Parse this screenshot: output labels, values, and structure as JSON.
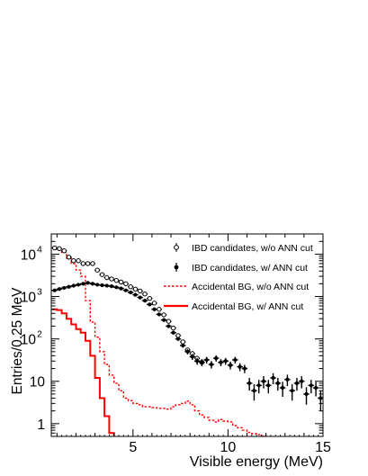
{
  "chart_data": {
    "type": "scatter",
    "title": "",
    "xlabel": "Visible energy (MeV)",
    "ylabel": "Entries/0.25 MeV",
    "xlim": [
      0.7,
      15
    ],
    "ylim": [
      0.5,
      30000
    ],
    "yscale": "log",
    "x_ticks": [
      5,
      10,
      15
    ],
    "y_ticks": [
      {
        "value": 1,
        "label": "1"
      },
      {
        "value": 10,
        "label": "10"
      },
      {
        "value": 100,
        "label": "10",
        "exp": "2"
      },
      {
        "value": 1000,
        "label": "10",
        "exp": "3"
      },
      {
        "value": 10000,
        "label": "10",
        "exp": "4"
      }
    ],
    "grid": false,
    "legend_position": "top-right",
    "series": [
      {
        "name": "IBD candidates, w/o ANN cut",
        "style": "open-marker-errorbars",
        "color": "#000000",
        "x": [
          0.875,
          1.125,
          1.375,
          1.625,
          1.875,
          2.125,
          2.375,
          2.625,
          2.875,
          3.125,
          3.375,
          3.625,
          3.875,
          4.125,
          4.375,
          4.625,
          4.875,
          5.125,
          5.375,
          5.625,
          5.875,
          6.125,
          6.375,
          6.625,
          6.875,
          7.125,
          7.375,
          7.625,
          7.875,
          8.125,
          8.375,
          8.625
        ],
        "y": [
          14000,
          13500,
          12000,
          8500,
          7000,
          7000,
          6000,
          6000,
          6000,
          4200,
          3300,
          2800,
          2600,
          2400,
          2200,
          2000,
          1700,
          1500,
          1350,
          1150,
          900,
          700,
          500,
          370,
          260,
          180,
          120,
          85,
          55,
          45,
          35,
          28
        ]
      },
      {
        "name": "IBD candidates, w/ ANN cut",
        "style": "filled-marker-errorbars",
        "color": "#000000",
        "x": [
          0.875,
          1.125,
          1.375,
          1.625,
          1.875,
          2.125,
          2.375,
          2.625,
          2.875,
          3.125,
          3.375,
          3.625,
          3.875,
          4.125,
          4.375,
          4.625,
          4.875,
          5.125,
          5.375,
          5.625,
          5.875,
          6.125,
          6.375,
          6.625,
          6.875,
          7.125,
          7.375,
          7.625,
          7.875,
          8.125,
          8.375,
          8.625,
          8.875,
          9.125,
          9.375,
          9.625,
          9.875,
          10.125,
          10.375,
          10.625,
          10.875,
          11.125,
          11.375,
          11.625,
          11.875,
          12.125,
          12.375,
          12.625,
          12.875,
          13.125,
          13.375,
          13.625,
          13.875,
          14.125,
          14.375,
          14.625,
          14.875
        ],
        "y": [
          1400,
          1500,
          1600,
          1700,
          1800,
          1900,
          2000,
          2100,
          2000,
          1900,
          1850,
          1800,
          1750,
          1650,
          1550,
          1400,
          1250,
          1100,
          950,
          800,
          650,
          500,
          380,
          280,
          200,
          140,
          100,
          70,
          50,
          38,
          30,
          28,
          32,
          25,
          35,
          28,
          30,
          24,
          32,
          22,
          20,
          9,
          6,
          8,
          10,
          8,
          12,
          9,
          7,
          11,
          6,
          9,
          10,
          5,
          8,
          7,
          4
        ],
        "yerr": [
          40,
          40,
          40,
          45,
          45,
          45,
          45,
          45,
          45,
          45,
          45,
          45,
          45,
          40,
          40,
          38,
          36,
          34,
          31,
          29,
          26,
          23,
          20,
          17,
          14,
          12,
          10,
          8,
          7,
          6,
          5.5,
          5.3,
          5.7,
          5,
          6,
          5.3,
          5.5,
          5,
          5.7,
          4.7,
          4.5,
          3,
          2.5,
          2.8,
          3.2,
          2.8,
          3.5,
          3,
          2.7,
          3.3,
          2.5,
          3,
          3.2,
          2.2,
          2.8,
          2.6,
          2
        ]
      },
      {
        "name": "Accidental BG, w/o ANN cut",
        "style": "dashed-step",
        "color": "#ff0000",
        "edges": [
          0.75,
          1.0,
          1.25,
          1.5,
          1.75,
          2.0,
          2.25,
          2.5,
          2.75,
          3.0,
          3.25,
          3.5,
          3.75,
          4.0,
          4.25,
          4.5,
          4.75,
          5.0,
          5.25,
          5.5,
          5.75,
          6.0,
          6.25,
          6.5,
          6.75,
          7.0,
          7.25,
          7.5,
          7.75,
          8.0,
          8.25,
          8.5,
          8.75,
          9.0,
          9.25,
          9.5,
          9.75,
          10.0,
          10.25,
          10.5,
          10.75,
          11.0,
          11.25,
          11.5,
          11.75,
          12.0
        ],
        "values": [
          14000,
          13000,
          11000,
          8000,
          6000,
          4200,
          3000,
          800,
          250,
          110,
          50,
          25,
          14,
          9,
          6,
          4,
          3.5,
          3,
          2.8,
          2.5,
          2.5,
          2.4,
          2.3,
          2.3,
          2.2,
          2.5,
          2.8,
          3.0,
          3.4,
          2.8,
          2.0,
          1.6,
          1.4,
          1.2,
          1.1,
          1.25,
          1.15,
          1.1,
          0.9,
          0.8,
          0.7,
          0.62,
          0.58,
          0.55,
          0.52
        ]
      },
      {
        "name": "Accidental BG, w/ ANN cut",
        "style": "solid-step",
        "color": "#ff0000",
        "edges": [
          0.75,
          1.0,
          1.25,
          1.5,
          1.75,
          2.0,
          2.25,
          2.5,
          2.75,
          3.0,
          3.25,
          3.5,
          3.75,
          4.0
        ],
        "values": [
          500,
          480,
          400,
          300,
          220,
          170,
          140,
          90,
          40,
          12,
          4,
          1.5,
          0.6
        ]
      }
    ]
  }
}
